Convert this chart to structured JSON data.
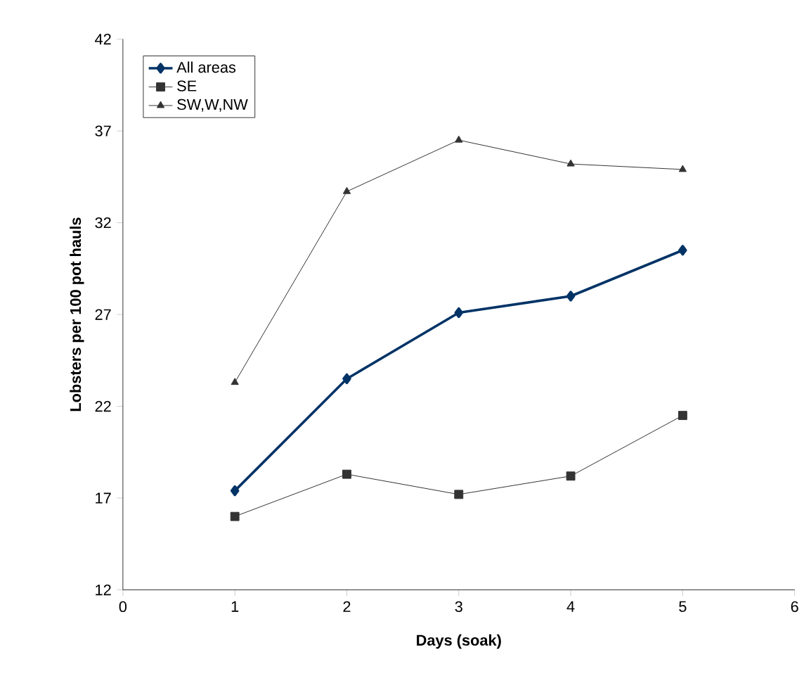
{
  "chart_data": {
    "type": "line",
    "xlabel": "Days (soak)",
    "ylabel": "Lobsters per 100 pot hauls",
    "x": [
      1,
      2,
      3,
      4,
      5
    ],
    "series": [
      {
        "name": "All areas",
        "color": "#003366",
        "marker": "diamond",
        "values": [
          17.4,
          23.5,
          27.1,
          28.0,
          30.5
        ]
      },
      {
        "name": "SE",
        "color": "#333333",
        "marker": "square",
        "values": [
          16.0,
          18.3,
          17.2,
          18.2,
          21.5
        ]
      },
      {
        "name": "SW,W,NW",
        "color": "#333333",
        "marker": "triangle",
        "values": [
          23.3,
          33.7,
          36.5,
          35.2,
          34.9
        ]
      }
    ],
    "xlim": [
      0,
      6
    ],
    "ylim": [
      12,
      42
    ],
    "xticks": [
      0,
      1,
      2,
      3,
      4,
      5,
      6
    ],
    "yticks": [
      12,
      17,
      22,
      27,
      32,
      37,
      42
    ],
    "grid": false,
    "legend": "top left",
    "line_style": "solid"
  }
}
